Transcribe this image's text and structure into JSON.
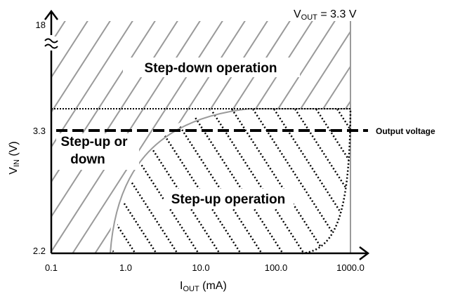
{
  "header": {
    "vout_prefix": "V",
    "vout_sub": "OUT",
    "vout_value": " = 3.3 V"
  },
  "axes": {
    "y_label_main": "V",
    "y_label_sub": "IN",
    "y_label_unit": " (V)",
    "x_label_main": "I",
    "x_label_sub": "OUT",
    "x_label_unit": " (mA)",
    "y_ticks": [
      "18",
      "3.3",
      "2.2"
    ],
    "x_ticks": [
      "0.1",
      "1.0",
      "10.0",
      "100.0",
      "1000.0"
    ],
    "axis_break_glyph": "≈"
  },
  "regions": {
    "step_down": "Step-down operation",
    "step_up_or_down_line1": "Step-up or",
    "step_up_or_down_line2": "down",
    "step_up": "Step-up operation"
  },
  "annotations": {
    "output_voltage": "Output voltage"
  },
  "colors": {
    "gray_hatch": "#9a9a9a",
    "black": "#000000",
    "background": "#ffffff"
  }
}
